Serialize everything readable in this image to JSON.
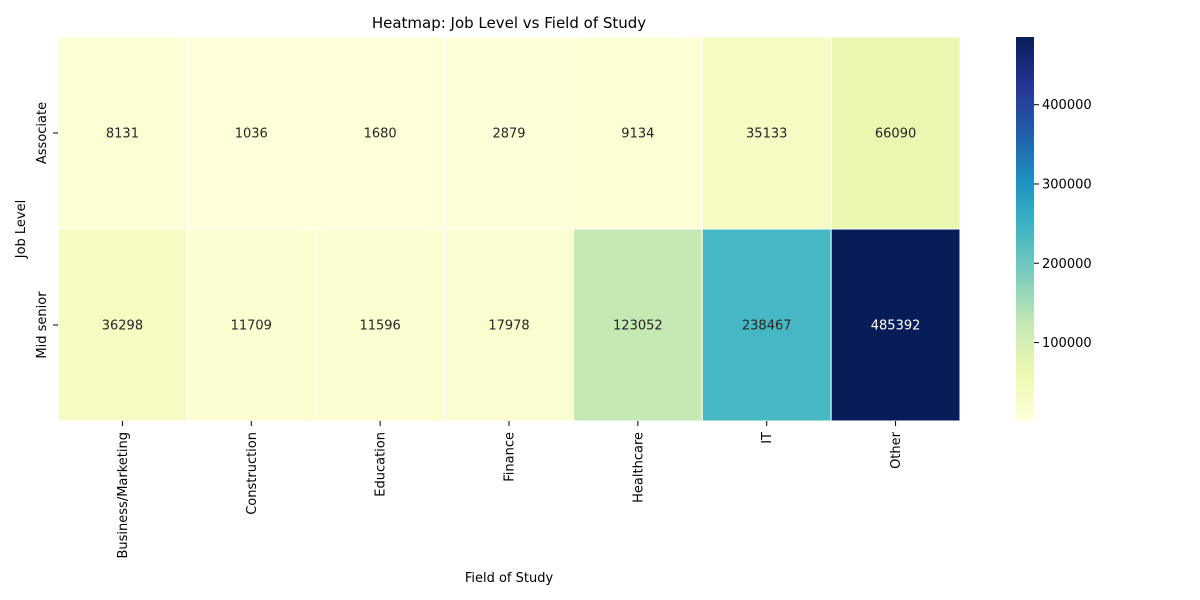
{
  "chart_data": {
    "type": "heatmap",
    "title": "Heatmap: Job Level vs Field of Study",
    "xlabel": "Field of Study",
    "ylabel": "Job Level",
    "x_categories": [
      "Business/Marketing",
      "Construction",
      "Education",
      "Finance",
      "Healthcare",
      "IT",
      "Other"
    ],
    "y_categories": [
      "Associate",
      "Mid senior"
    ],
    "values": [
      [
        8131,
        1036,
        1680,
        2879,
        9134,
        35133,
        66090
      ],
      [
        36298,
        11709,
        11596,
        17978,
        123052,
        238467,
        485392
      ]
    ],
    "colormap": "YlGnBu",
    "color_range": [
      1036,
      485392
    ],
    "colorbar_ticks": [
      100000,
      200000,
      300000,
      400000
    ],
    "colorbar_tick_labels": [
      "100000",
      "200000",
      "300000",
      "400000"
    ],
    "annotations": true,
    "legend_position": "right (colorbar)"
  }
}
